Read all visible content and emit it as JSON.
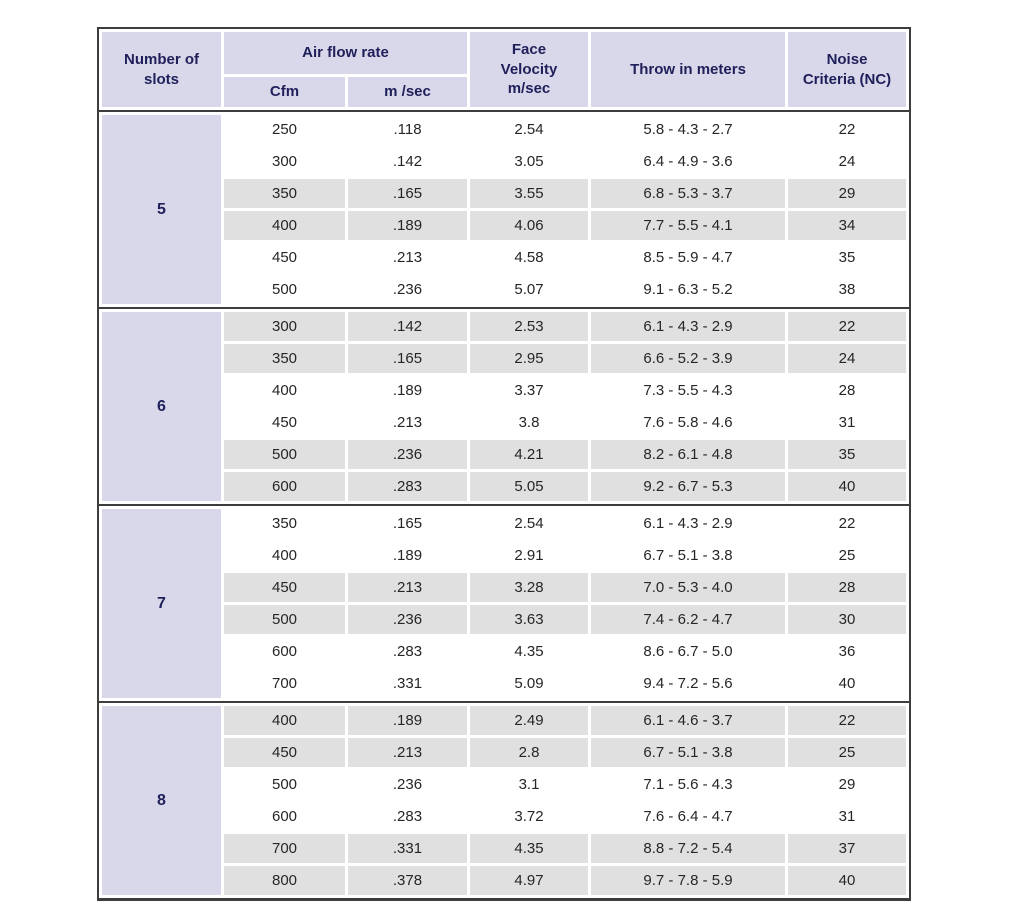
{
  "chart_data": {
    "type": "table",
    "header": {
      "slots": "Number of\nslots",
      "air_flow": "Air flow rate",
      "cfm": "Cfm",
      "m_sec": "m /sec",
      "face_velocity": "Face\nVelocity\nm/sec",
      "throw": "Throw in meters",
      "noise": "Noise\nCriteria (NC)"
    },
    "column_keys": [
      "Cfm",
      "m /sec",
      "Face Velocity m/sec",
      "Throw in meters",
      "Noise Criteria (NC)"
    ],
    "groups": [
      {
        "slots": "5",
        "rows": [
          [
            "250",
            ".118",
            "2.54",
            "5.8 - 4.3 - 2.7",
            "22"
          ],
          [
            "300",
            ".142",
            "3.05",
            "6.4 - 4.9 - 3.6",
            "24"
          ],
          [
            "350",
            ".165",
            "3.55",
            "6.8 - 5.3 - 3.7",
            "29"
          ],
          [
            "400",
            ".189",
            "4.06",
            "7.7 - 5.5 - 4.1",
            "34"
          ],
          [
            "450",
            ".213",
            "4.58",
            "8.5 - 5.9 - 4.7",
            "35"
          ],
          [
            "500",
            ".236",
            "5.07",
            "9.1 - 6.3 - 5.2",
            "38"
          ]
        ]
      },
      {
        "slots": "6",
        "rows": [
          [
            "300",
            ".142",
            "2.53",
            "6.1 - 4.3 - 2.9",
            "22"
          ],
          [
            "350",
            ".165",
            "2.95",
            "6.6 - 5.2 - 3.9",
            "24"
          ],
          [
            "400",
            ".189",
            "3.37",
            "7.3 - 5.5 - 4.3",
            "28"
          ],
          [
            "450",
            ".213",
            "3.8",
            "7.6 - 5.8 - 4.6",
            "31"
          ],
          [
            "500",
            ".236",
            "4.21",
            "8.2 - 6.1 - 4.8",
            "35"
          ],
          [
            "600",
            ".283",
            "5.05",
            "9.2 - 6.7 - 5.3",
            "40"
          ]
        ]
      },
      {
        "slots": "7",
        "rows": [
          [
            "350",
            ".165",
            "2.54",
            "6.1 - 4.3 - 2.9",
            "22"
          ],
          [
            "400",
            ".189",
            "2.91",
            "6.7 - 5.1 - 3.8",
            "25"
          ],
          [
            "450",
            ".213",
            "3.28",
            "7.0 - 5.3 - 4.0",
            "28"
          ],
          [
            "500",
            ".236",
            "3.63",
            "7.4 - 6.2 - 4.7",
            "30"
          ],
          [
            "600",
            ".283",
            "4.35",
            "8.6 - 6.7 - 5.0",
            "36"
          ],
          [
            "700",
            ".331",
            "5.09",
            "9.4 - 7.2 - 5.6",
            "40"
          ]
        ]
      },
      {
        "slots": "8",
        "rows": [
          [
            "400",
            ".189",
            "2.49",
            "6.1 - 4.6 - 3.7",
            "22"
          ],
          [
            "450",
            ".213",
            "2.8",
            "6.7 - 5.1 - 3.8",
            "25"
          ],
          [
            "500",
            ".236",
            "3.1",
            "7.1 - 5.6 - 4.3",
            "29"
          ],
          [
            "600",
            ".283",
            "3.72",
            "7.6 - 6.4 - 4.7",
            "31"
          ],
          [
            "700",
            ".331",
            "4.35",
            "8.8 - 7.2 - 5.4",
            "37"
          ],
          [
            "800",
            ".378",
            "4.97",
            "9.7 - 7.8 - 5.9",
            "40"
          ]
        ]
      }
    ],
    "colors": {
      "header_background": "#d9d8ea",
      "header_text": "#1f1f5a",
      "row_band_gray": "#e0e0e0",
      "row_band_white": "#ffffff",
      "data_text": "#262626",
      "border": "#3d3d3d"
    },
    "layout_hints": {
      "banding": "rows shaded in alternating pairs (2 white, 2 gray), pattern offset per slot group",
      "group_separator": "dark horizontal rule between slot groups and below header"
    }
  }
}
